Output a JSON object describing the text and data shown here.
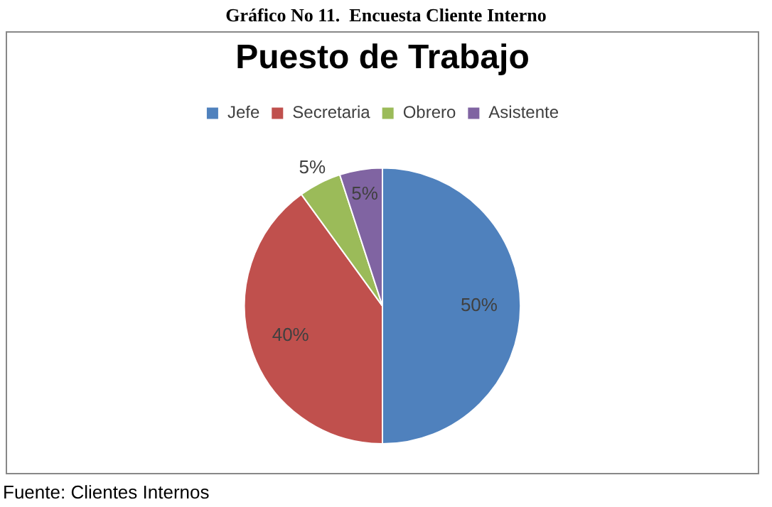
{
  "chart_data": {
    "type": "pie",
    "title": "Puesto de Trabajo",
    "categories": [
      "Jefe",
      "Secretaria",
      "Obrero",
      "Asistente"
    ],
    "values": [
      50,
      40,
      5,
      5
    ],
    "colors": [
      "#4f81bd",
      "#c0504d",
      "#9bbb59",
      "#8064a2"
    ],
    "value_labels": [
      "50%",
      "40%",
      "5%",
      "5%"
    ],
    "legend": "top",
    "annotations": [
      "Gráfico No 11.  Encuesta Cliente Interno",
      "Fuente: Clientes Internos"
    ]
  }
}
